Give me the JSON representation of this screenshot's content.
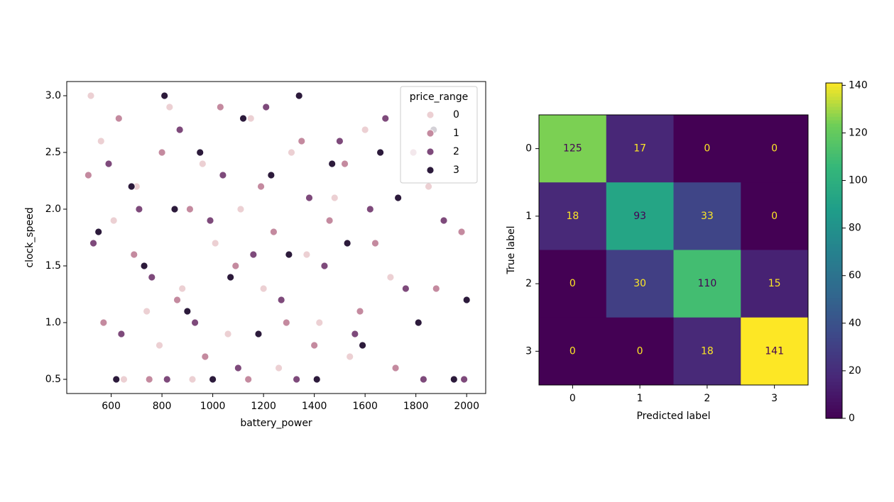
{
  "chart_data": [
    {
      "type": "scatter",
      "xlabel": "battery_power",
      "ylabel": "clock_speed",
      "xlim": [
        425,
        2075
      ],
      "ylim": [
        0.375,
        3.125
      ],
      "xticks": [
        600,
        800,
        1000,
        1200,
        1400,
        1600,
        1800,
        2000
      ],
      "yticks": [
        0.5,
        {
          "value": 1,
          "label": "1.0"
        },
        1.5,
        {
          "value": 2,
          "label": "2.0"
        },
        2.5,
        {
          "value": 3,
          "label": "3.0"
        }
      ],
      "legend_title": "price_range",
      "legend_loc": "upper right",
      "series": [
        {
          "name": "0",
          "color": "#ecd0d3",
          "x": [
            520,
            560,
            610,
            650,
            700,
            740,
            790,
            830,
            880,
            920,
            960,
            1010,
            1060,
            1110,
            1150,
            1200,
            1260,
            1310,
            1370,
            1420,
            1480,
            1540,
            1600,
            1700,
            1850
          ],
          "values": [
            3.0,
            2.6,
            1.9,
            0.5,
            2.2,
            1.1,
            0.8,
            2.9,
            1.3,
            0.5,
            2.4,
            1.7,
            0.9,
            2.0,
            2.8,
            1.3,
            0.6,
            2.5,
            1.6,
            1.0,
            2.1,
            0.7,
            2.7,
            1.4,
            2.2
          ]
        },
        {
          "name": "1",
          "color": "#c48a9f",
          "x": [
            510,
            570,
            630,
            690,
            750,
            800,
            860,
            910,
            970,
            1030,
            1090,
            1140,
            1190,
            1240,
            1290,
            1350,
            1400,
            1460,
            1520,
            1580,
            1640,
            1720,
            1790,
            1880,
            1980
          ],
          "values": [
            2.3,
            1.0,
            2.8,
            1.6,
            0.5,
            2.5,
            1.2,
            2.0,
            0.7,
            2.9,
            1.5,
            0.5,
            2.2,
            1.8,
            1.0,
            2.6,
            0.8,
            1.9,
            2.4,
            1.1,
            1.7,
            0.6,
            2.5,
            1.3,
            1.8
          ]
        },
        {
          "name": "2",
          "color": "#7e4a7b",
          "x": [
            530,
            590,
            640,
            710,
            760,
            820,
            870,
            930,
            990,
            1040,
            1100,
            1160,
            1210,
            1270,
            1330,
            1380,
            1440,
            1500,
            1560,
            1620,
            1680,
            1760,
            1830,
            1910,
            1990
          ],
          "values": [
            1.7,
            2.4,
            0.9,
            2.0,
            1.4,
            0.5,
            2.7,
            1.0,
            1.9,
            2.3,
            0.6,
            1.6,
            2.9,
            1.2,
            0.5,
            2.1,
            1.5,
            2.6,
            0.9,
            2.0,
            2.8,
            1.3,
            0.5,
            1.9,
            0.5
          ]
        },
        {
          "name": "3",
          "color": "#2c1a3b",
          "x": [
            550,
            620,
            680,
            730,
            810,
            850,
            900,
            950,
            1000,
            1070,
            1120,
            1180,
            1230,
            1300,
            1340,
            1410,
            1470,
            1530,
            1590,
            1660,
            1730,
            1810,
            1870,
            1950,
            2000
          ],
          "values": [
            1.8,
            0.5,
            2.2,
            1.5,
            3.0,
            2.0,
            1.1,
            2.5,
            0.5,
            1.4,
            2.8,
            0.9,
            2.3,
            1.6,
            3.0,
            0.5,
            2.4,
            1.7,
            0.8,
            2.5,
            2.1,
            1.0,
            2.7,
            0.5,
            1.2
          ]
        }
      ]
    },
    {
      "type": "heatmap",
      "xlabel": "Predicted label",
      "ylabel": "True label",
      "categories": [
        "0",
        "1",
        "2",
        "3"
      ],
      "y_categories": [
        "0",
        "1",
        "2",
        "3"
      ],
      "values": [
        [
          125,
          17,
          0,
          0
        ],
        [
          18,
          93,
          33,
          0
        ],
        [
          0,
          30,
          110,
          15
        ],
        [
          0,
          0,
          18,
          141
        ]
      ],
      "colormap": "viridis",
      "clim": [
        0,
        141
      ],
      "cticks": [
        0,
        20,
        40,
        60,
        80,
        100,
        120,
        140
      ]
    }
  ]
}
